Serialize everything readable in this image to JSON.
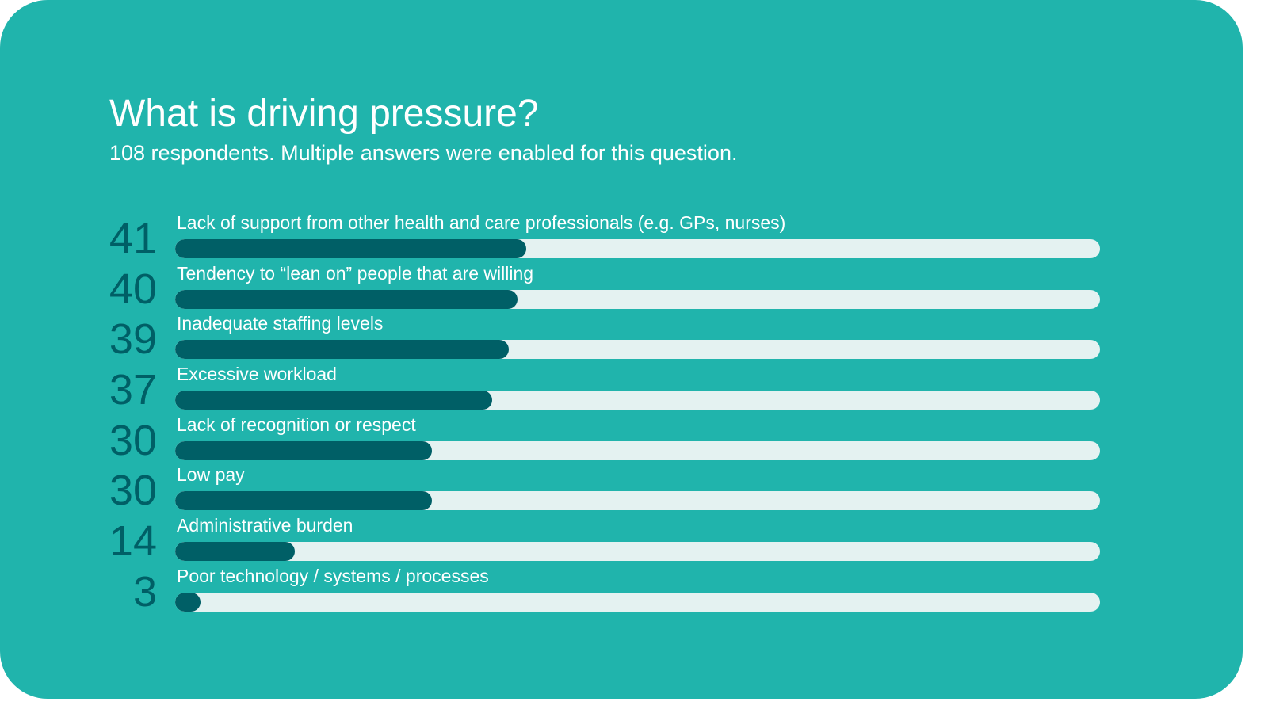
{
  "chart_data": {
    "type": "bar",
    "orientation": "horizontal",
    "title": "What is driving pressure?",
    "subtitle": "108 respondents. Multiple answers were enabled for this question.",
    "xlim": [
      0,
      108
    ],
    "categories": [
      "Lack of support from other health and care professionals (e.g. GPs, nurses)",
      "Tendency to “lean on” people that are willing",
      "Inadequate staffing levels",
      "Excessive workload",
      "Lack of recognition or respect",
      "Low pay",
      "Administrative burden",
      "Poor technology / systems / processes"
    ],
    "values": [
      41,
      40,
      39,
      37,
      30,
      30,
      14,
      3
    ],
    "grid": false
  },
  "colors": {
    "background": "#20b4ac",
    "bar": "#005f66",
    "track": "#e4f2f1"
  }
}
